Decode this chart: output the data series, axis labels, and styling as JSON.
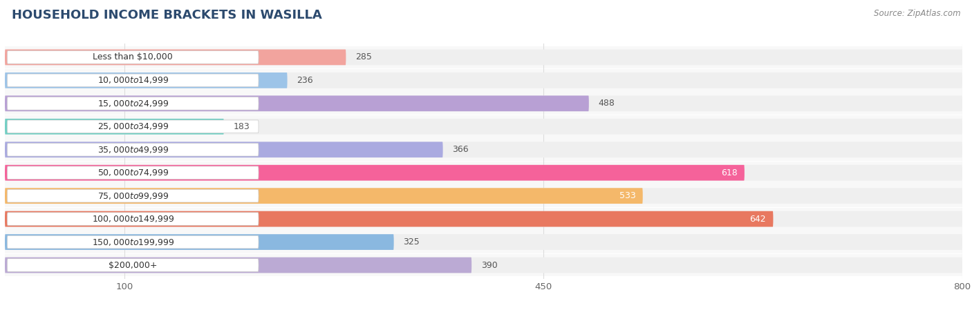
{
  "title": "HOUSEHOLD INCOME BRACKETS IN WASILLA",
  "source": "Source: ZipAtlas.com",
  "categories": [
    "Less than $10,000",
    "$10,000 to $14,999",
    "$15,000 to $24,999",
    "$25,000 to $34,999",
    "$35,000 to $49,999",
    "$50,000 to $74,999",
    "$75,000 to $99,999",
    "$100,000 to $149,999",
    "$150,000 to $199,999",
    "$200,000+"
  ],
  "values": [
    285,
    236,
    488,
    183,
    366,
    618,
    533,
    642,
    325,
    390
  ],
  "bar_colors": [
    "#f2a49e",
    "#9dc4e8",
    "#b8a0d4",
    "#72cfc4",
    "#aaaae0",
    "#f5629a",
    "#f4b86a",
    "#e87860",
    "#8ab8e0",
    "#bbaad4"
  ],
  "label_colors": [
    "#444444",
    "#444444",
    "#444444",
    "#444444",
    "#444444",
    "white",
    "white",
    "white",
    "#444444",
    "#444444"
  ],
  "bg_color": "#ffffff",
  "bar_bg_color": "#efefef",
  "row_bg_color": "#f8f8f8",
  "xlim": [
    0,
    800
  ],
  "xticks": [
    100,
    450,
    800
  ],
  "figsize": [
    14.06,
    4.49
  ],
  "dpi": 100
}
